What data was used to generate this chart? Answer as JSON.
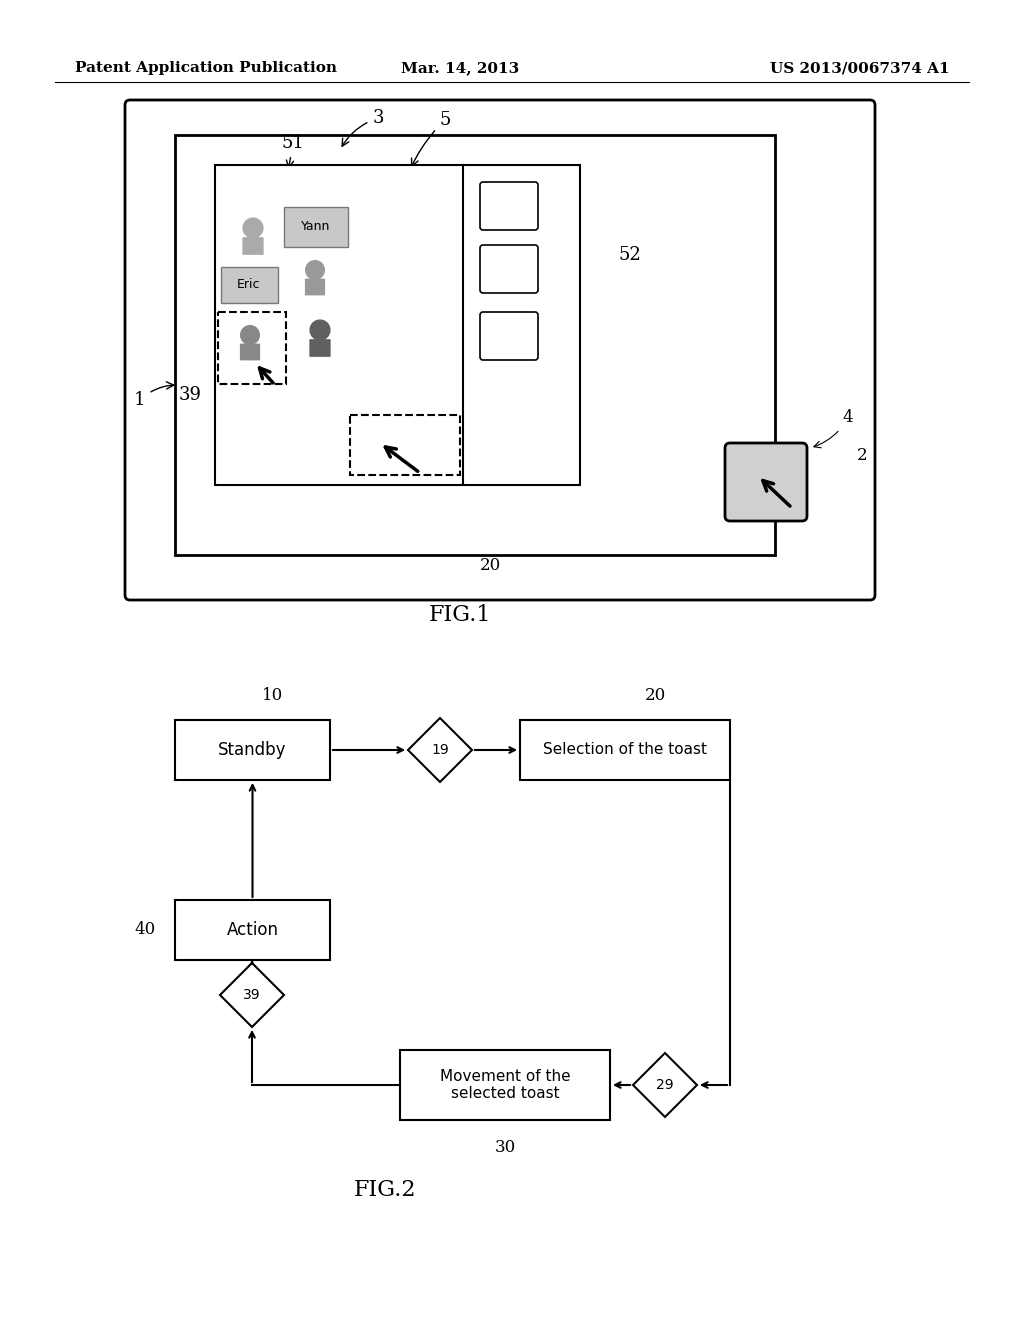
{
  "bg_color": "#ffffff",
  "header_left": "Patent Application Publication",
  "header_center": "Mar. 14, 2013",
  "header_right": "US 2013/0067374 A1",
  "fig1_label": "FIG.1",
  "fig2_label": "FIG.2"
}
